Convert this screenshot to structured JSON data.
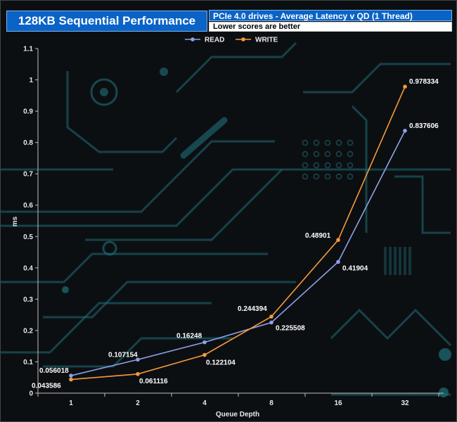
{
  "header": {
    "title": "128KB Sequential Performance",
    "subtitle": "PCIe 4.0 drives - Average Latency v QD (1 Thread)",
    "note": "Lower scores are better"
  },
  "colors": {
    "read": "#8ea1e8",
    "write": "#f59a3a",
    "header_blue": "#0a63c7",
    "circuit": "#1f6f78"
  },
  "chart_data": {
    "type": "line",
    "xlabel": "Queue Depth",
    "ylabel": "ms",
    "categories": [
      "1",
      "2",
      "4",
      "8",
      "16",
      "32"
    ],
    "ylim": [
      0,
      1.1
    ],
    "yticks": [
      "0",
      "0.1",
      "0.2",
      "0.3",
      "0.4",
      "0.5",
      "0.6",
      "0.7",
      "0.8",
      "0.9",
      "1",
      "1.1"
    ],
    "grid": false,
    "legend": "top-center",
    "series": [
      {
        "name": "READ",
        "values": [
          0.056018,
          0.107154,
          0.16248,
          0.225508,
          0.41904,
          0.837606
        ],
        "labels": [
          "0.056018",
          "0.107154",
          "0.16248",
          "0.225508",
          "0.41904",
          "0.837606"
        ]
      },
      {
        "name": "WRITE",
        "values": [
          0.043586,
          0.061116,
          0.122104,
          0.244394,
          0.48901,
          0.978334
        ],
        "labels": [
          "0.043586",
          "0.061116",
          "0.122104",
          "0.244394",
          "0.48901",
          "0.978334"
        ]
      }
    ]
  }
}
